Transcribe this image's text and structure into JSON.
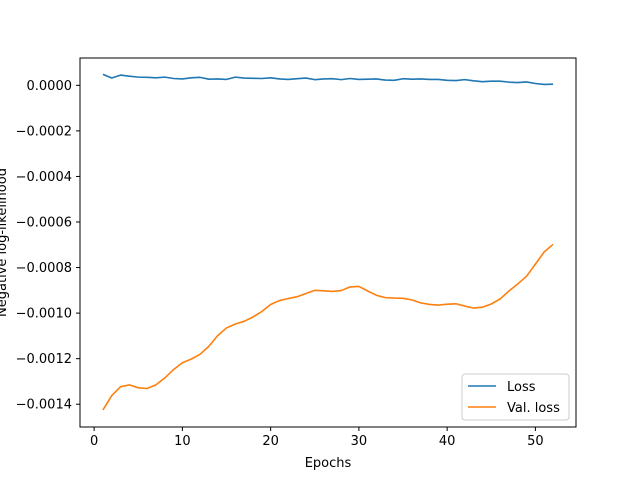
{
  "chart_data": {
    "type": "line",
    "title": "",
    "xlabel": "Epochs",
    "ylabel": "Negative log-likelihood",
    "xlim": [
      -1.6,
      54.6
    ],
    "ylim": [
      -0.0015,
      0.00012
    ],
    "xticks": [
      0,
      10,
      20,
      30,
      40,
      50
    ],
    "xtick_labels": [
      "0",
      "10",
      "20",
      "30",
      "40",
      "50"
    ],
    "yticks": [
      -0.0014,
      -0.0012,
      -0.001,
      -0.0008,
      -0.0006,
      -0.0004,
      -0.0002,
      0.0
    ],
    "ytick_labels": [
      "−0.0014",
      "−0.0012",
      "−0.0010",
      "−0.0008",
      "−0.0006",
      "−0.0004",
      "−0.0002",
      "0.0000"
    ],
    "grid": false,
    "legend_position": "lower-right",
    "x": [
      1,
      2,
      3,
      4,
      5,
      6,
      7,
      8,
      9,
      10,
      11,
      12,
      13,
      14,
      15,
      16,
      17,
      18,
      19,
      20,
      21,
      22,
      23,
      24,
      25,
      26,
      27,
      28,
      29,
      30,
      31,
      32,
      33,
      34,
      35,
      36,
      37,
      38,
      39,
      40,
      41,
      42,
      43,
      44,
      45,
      46,
      47,
      48,
      49,
      50,
      51,
      52
    ],
    "series": [
      {
        "name": "Loss",
        "color": "#1f77b4",
        "values": [
          4.8e-05,
          3.2e-05,
          4.5e-05,
          4e-05,
          3.6e-05,
          3.5e-05,
          3.3e-05,
          3.6e-05,
          3e-05,
          2.8e-05,
          3.3e-05,
          3.5e-05,
          2.7e-05,
          2.8e-05,
          2.6e-05,
          3.6e-05,
          3.2e-05,
          3.1e-05,
          3e-05,
          3.3e-05,
          2.8e-05,
          2.6e-05,
          2.9e-05,
          3.2e-05,
          2.5e-05,
          2.8e-05,
          2.9e-05,
          2.5e-05,
          3e-05,
          2.6e-05,
          2.7e-05,
          2.8e-05,
          2.3e-05,
          2.2e-05,
          2.9e-05,
          2.7e-05,
          2.8e-05,
          2.6e-05,
          2.6e-05,
          2.2e-05,
          2.1e-05,
          2.5e-05,
          2e-05,
          1.6e-05,
          1.8e-05,
          1.8e-05,
          1.4e-05,
          1.2e-05,
          1.5e-05,
          8e-06,
          4e-06,
          5e-06
        ]
      },
      {
        "name": "Val. loss",
        "color": "#ff7f0e",
        "values": [
          -0.001425,
          -0.001362,
          -0.001323,
          -0.001315,
          -0.001328,
          -0.001331,
          -0.001315,
          -0.001285,
          -0.001248,
          -0.001218,
          -0.001202,
          -0.001181,
          -0.001146,
          -0.001099,
          -0.001065,
          -0.001048,
          -0.001036,
          -0.001017,
          -0.000993,
          -0.000962,
          -0.000945,
          -0.000936,
          -0.000928,
          -0.000914,
          -0.0009,
          -0.000902,
          -0.000905,
          -0.000901,
          -0.000885,
          -0.000883,
          -0.000903,
          -0.000922,
          -0.000932,
          -0.000934,
          -0.000935,
          -0.000942,
          -0.000955,
          -0.000962,
          -0.000965,
          -0.000961,
          -0.000959,
          -0.000969,
          -0.000978,
          -0.000974,
          -0.00096,
          -0.000938,
          -0.000903,
          -0.000872,
          -0.000838,
          -0.000785,
          -0.000731,
          -0.000698
        ]
      }
    ]
  }
}
